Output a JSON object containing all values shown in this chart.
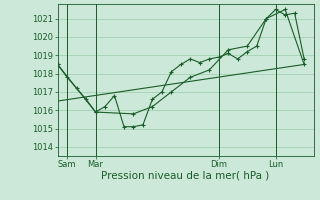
{
  "background_color": "#cce8d8",
  "grid_color": "#99ccaa",
  "line_color": "#1a5c2a",
  "ylabel_ticks": [
    1014,
    1015,
    1016,
    1017,
    1018,
    1019,
    1020,
    1021
  ],
  "xlabel": "Pression niveau de la mer( hPa )",
  "day_labels": [
    "Sam",
    "Mar",
    "Dim",
    "Lun"
  ],
  "day_positions": [
    0.5,
    2.0,
    8.5,
    11.5
  ],
  "line1_x": [
    0,
    0.5,
    1.0,
    1.5,
    2.0,
    2.5,
    3.0,
    3.5,
    4.0,
    4.5,
    5.0,
    5.5,
    6.0,
    6.5,
    7.0,
    7.5,
    8.0,
    8.5,
    9.0,
    9.5,
    10.0,
    10.5,
    11.0,
    11.5,
    12.0,
    12.5,
    13.0
  ],
  "line1_y": [
    1018.5,
    1017.8,
    1017.2,
    1016.6,
    1015.9,
    1016.2,
    1016.8,
    1015.1,
    1015.1,
    1015.2,
    1016.6,
    1017.0,
    1018.1,
    1018.5,
    1018.8,
    1018.6,
    1018.8,
    1018.9,
    1019.1,
    1018.8,
    1019.2,
    1019.5,
    1021.0,
    1021.5,
    1021.2,
    1021.3,
    1018.8
  ],
  "line2_x": [
    0,
    2.0,
    4.0,
    5.0,
    6.0,
    7.0,
    8.0,
    9.0,
    10.0,
    11.0,
    12.0,
    13.0
  ],
  "line2_y": [
    1018.5,
    1015.9,
    1015.8,
    1016.2,
    1017.0,
    1017.8,
    1018.2,
    1019.3,
    1019.5,
    1021.0,
    1021.5,
    1018.5
  ],
  "line3_x": [
    0,
    13.0
  ],
  "line3_y": [
    1016.5,
    1018.5
  ],
  "xlim": [
    0,
    13.5
  ],
  "ylim": [
    1013.5,
    1021.8
  ],
  "figsize": [
    3.2,
    2.0
  ],
  "dpi": 100,
  "tick_fontsize": 6.0,
  "xlabel_fontsize": 7.5
}
